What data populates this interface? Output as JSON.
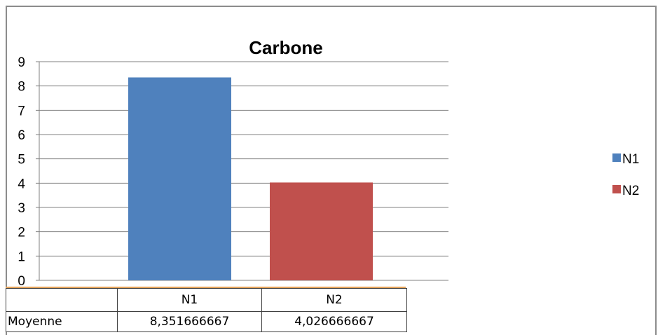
{
  "chart_data": {
    "type": "bar",
    "title": "Carbone",
    "categories": [
      ""
    ],
    "series": [
      {
        "name": "N1",
        "value": 8.351666667,
        "color": "#4f81bd"
      },
      {
        "name": "N2",
        "value": 4.026666667,
        "color": "#c0504d"
      }
    ],
    "ylim": [
      0,
      9
    ],
    "yticks": [
      "0",
      "1",
      "2",
      "3",
      "4",
      "5",
      "6",
      "7",
      "8",
      "9"
    ],
    "grid": true,
    "legend": "right"
  },
  "table": {
    "headers": [
      "",
      "N1",
      "N2"
    ],
    "rows": [
      {
        "label": "Moyenne",
        "values": [
          "8,351666667",
          "4,026666667"
        ]
      }
    ]
  }
}
